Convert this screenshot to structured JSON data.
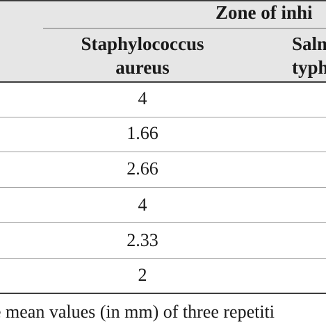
{
  "table": {
    "group_header": "Zone of inhi",
    "columns": [
      {
        "label_line1": "Staphylococcus",
        "label_line2": "aureus"
      },
      {
        "label_line1": "Salm",
        "label_line2": "typhi"
      }
    ],
    "rows": [
      {
        "value": "4"
      },
      {
        "value": "1.66"
      },
      {
        "value": "2.66"
      },
      {
        "value": "4"
      },
      {
        "value": "2.33"
      },
      {
        "value": "2"
      }
    ]
  },
  "footnote": "e mean values (in mm) of three repetiti"
}
